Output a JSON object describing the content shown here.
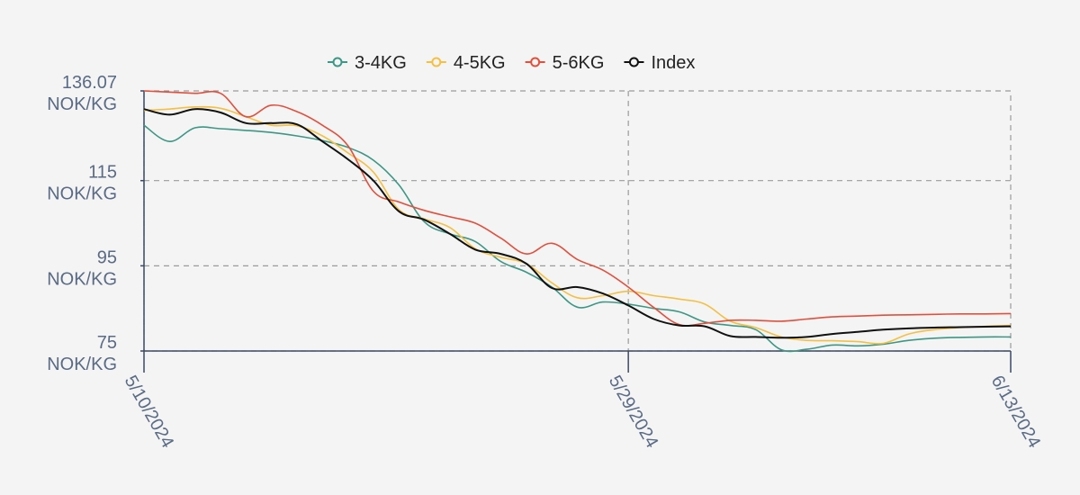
{
  "chart_data": {
    "type": "line",
    "x": [
      "5/10/2024",
      "5/11/2024",
      "5/12/2024",
      "5/13/2024",
      "5/14/2024",
      "5/15/2024",
      "5/16/2024",
      "5/17/2024",
      "5/18/2024",
      "5/19/2024",
      "5/20/2024",
      "5/21/2024",
      "5/22/2024",
      "5/23/2024",
      "5/24/2024",
      "5/25/2024",
      "5/26/2024",
      "5/27/2024",
      "5/28/2024",
      "5/29/2024",
      "5/30/2024",
      "5/31/2024",
      "6/1/2024",
      "6/2/2024",
      "6/3/2024",
      "6/4/2024",
      "6/5/2024",
      "6/6/2024",
      "6/7/2024",
      "6/8/2024",
      "6/9/2024",
      "6/10/2024",
      "6/11/2024",
      "6/12/2024",
      "6/13/2024"
    ],
    "x_tick_labels": [
      "5/10/2024",
      "5/29/2024",
      "6/13/2024"
    ],
    "y_ticks": [
      75,
      95,
      115,
      136.07
    ],
    "y_tick_labels": [
      "75",
      "95",
      "115",
      "136.07"
    ],
    "y_unit": "NOK/KG",
    "ylim": [
      75,
      136.07
    ],
    "grid": true,
    "legend_position": "top-center",
    "series": [
      {
        "name": "3-4KG",
        "color": "#3d9785",
        "values": [
          128.0,
          124.2,
          127.4,
          127.2,
          126.8,
          126.3,
          125.5,
          124.4,
          122.8,
          119.8,
          114.0,
          105.3,
          102.5,
          100.7,
          96.0,
          93.5,
          90.0,
          85.3,
          86.5,
          86.0,
          85.0,
          84.2,
          81.8,
          81.0,
          80.0,
          75.3,
          75.4,
          76.4,
          76.2,
          76.6,
          77.5,
          78.0,
          78.2,
          78.3,
          78.3
        ]
      },
      {
        "name": "4-5KG",
        "color": "#f3c043",
        "values": [
          131.5,
          131.8,
          132.3,
          132.0,
          130.0,
          128.0,
          127.9,
          125.5,
          121.5,
          117.0,
          108.2,
          106.0,
          104.0,
          99.0,
          97.0,
          95.5,
          91.0,
          87.5,
          88.0,
          89.0,
          88.0,
          87.2,
          86.0,
          82.0,
          80.5,
          78.3,
          77.5,
          77.4,
          77.2,
          76.8,
          79.0,
          80.0,
          80.5,
          80.8,
          81.0
        ]
      },
      {
        "name": "5-6KG",
        "color": "#e0503d",
        "values": [
          136.07,
          135.8,
          135.5,
          135.5,
          130.0,
          132.7,
          131.2,
          128.0,
          123.2,
          112.5,
          110.0,
          108.0,
          106.5,
          105.0,
          101.5,
          97.8,
          100.3,
          96.5,
          94.0,
          90.0,
          85.2,
          81.2,
          81.5,
          82.2,
          82.2,
          82.0,
          82.5,
          83.0,
          83.2,
          83.4,
          83.5,
          83.6,
          83.7,
          83.7,
          83.8
        ]
      },
      {
        "name": "Index",
        "color": "#111111",
        "values": [
          131.8,
          130.5,
          131.8,
          131.0,
          128.5,
          128.5,
          128.2,
          124.2,
          120.0,
          115.0,
          107.8,
          105.8,
          102.5,
          98.8,
          97.8,
          95.5,
          89.8,
          90.0,
          88.5,
          85.7,
          82.5,
          81.0,
          80.8,
          78.5,
          78.3,
          78.1,
          78.3,
          79.0,
          79.5,
          80.0,
          80.3,
          80.5,
          80.6,
          80.7,
          80.8
        ]
      }
    ]
  }
}
